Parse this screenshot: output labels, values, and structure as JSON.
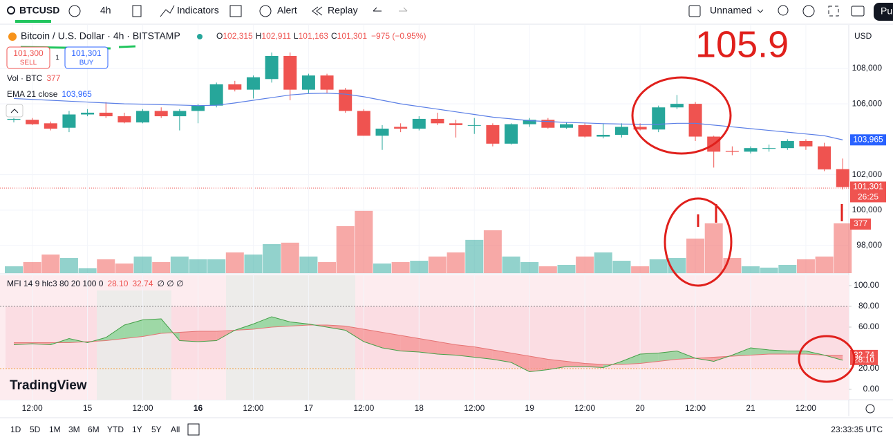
{
  "toolbar": {
    "symbol": "BTCUSD",
    "interval": "4h",
    "indicators": "Indicators",
    "alert": "Alert",
    "replay": "Replay",
    "layout": "Unnamed",
    "publish": "Pu"
  },
  "legend": {
    "title": "Bitcoin / U.S. Dollar · 4h · BITSTAMP",
    "o_key": "O",
    "o": "102,315",
    "h_key": "H",
    "h": "102,911",
    "l_key": "L",
    "l": "101,163",
    "c_key": "C",
    "c": "101,301",
    "change": "−975 (−0.95%)",
    "sell_price": "101,300",
    "sell": "SELL",
    "spread": "1",
    "buy_price": "101,301",
    "buy": "BUY",
    "vol": "Vol · BTC",
    "vol_value": "377",
    "ema": "EMA 21 close",
    "ema_value": "103,965",
    "mfi": "MFI 14 9 hlc3 80 20 100 0",
    "mfi_value": "28.10",
    "mfi_signal_value": "32.74",
    "mfi_extra": "∅ ∅ ∅"
  },
  "price_axis": {
    "currency": "USD",
    "ylim": [
      96440,
      110300
    ],
    "ticks": [
      {
        "value": 108000,
        "label": "108,000"
      },
      {
        "value": 106000,
        "label": "106,000"
      },
      {
        "value": 102000,
        "label": "102,000"
      },
      {
        "value": 100000,
        "label": "100,000"
      },
      {
        "value": 98000,
        "label": "98,000"
      }
    ],
    "ema_tag": {
      "value": 103965,
      "label": "103,965"
    },
    "last_tag": {
      "value": 101301,
      "label": "101,301"
    },
    "countdown": "26:25",
    "vol_tag": "377"
  },
  "candles": [
    {
      "o": 105100,
      "h": 105200,
      "l": 104950,
      "c": 105150
    },
    {
      "o": 105100,
      "h": 105200,
      "l": 104800,
      "c": 104850
    },
    {
      "o": 104900,
      "h": 105000,
      "l": 104500,
      "c": 104600
    },
    {
      "o": 104650,
      "h": 105600,
      "l": 104400,
      "c": 105400
    },
    {
      "o": 105400,
      "h": 105700,
      "l": 105300,
      "c": 105500
    },
    {
      "o": 105500,
      "h": 106100,
      "l": 105200,
      "c": 105300
    },
    {
      "o": 105300,
      "h": 105500,
      "l": 104900,
      "c": 104950
    },
    {
      "o": 104950,
      "h": 105700,
      "l": 104900,
      "c": 105600
    },
    {
      "o": 105600,
      "h": 105800,
      "l": 105200,
      "c": 105300
    },
    {
      "o": 105300,
      "h": 105700,
      "l": 104500,
      "c": 105600
    },
    {
      "o": 105600,
      "h": 106000,
      "l": 104900,
      "c": 105900
    },
    {
      "o": 105900,
      "h": 107200,
      "l": 105800,
      "c": 107100
    },
    {
      "o": 107100,
      "h": 107300,
      "l": 106700,
      "c": 106800
    },
    {
      "o": 106800,
      "h": 107600,
      "l": 106300,
      "c": 107500
    },
    {
      "o": 107400,
      "h": 108900,
      "l": 107200,
      "c": 108700
    },
    {
      "o": 108700,
      "h": 108900,
      "l": 106200,
      "c": 106800
    },
    {
      "o": 106800,
      "h": 107700,
      "l": 106600,
      "c": 107600
    },
    {
      "o": 107600,
      "h": 107700,
      "l": 106600,
      "c": 106800
    },
    {
      "o": 106800,
      "h": 106900,
      "l": 105500,
      "c": 105600
    },
    {
      "o": 105600,
      "h": 105700,
      "l": 104200,
      "c": 104200
    },
    {
      "o": 104200,
      "h": 104800,
      "l": 103400,
      "c": 104600
    },
    {
      "o": 104700,
      "h": 104900,
      "l": 104400,
      "c": 104600
    },
    {
      "o": 104600,
      "h": 105300,
      "l": 104500,
      "c": 105150
    },
    {
      "o": 105150,
      "h": 105500,
      "l": 104800,
      "c": 104900
    },
    {
      "o": 104900,
      "h": 105100,
      "l": 104100,
      "c": 104800
    },
    {
      "o": 104800,
      "h": 105200,
      "l": 104300,
      "c": 104800
    },
    {
      "o": 104800,
      "h": 104900,
      "l": 103600,
      "c": 103750
    },
    {
      "o": 103750,
      "h": 104900,
      "l": 103700,
      "c": 104850
    },
    {
      "o": 104850,
      "h": 105200,
      "l": 104700,
      "c": 105100
    },
    {
      "o": 105100,
      "h": 105200,
      "l": 104600,
      "c": 104650
    },
    {
      "o": 104650,
      "h": 104950,
      "l": 104600,
      "c": 104850
    },
    {
      "o": 104800,
      "h": 104900,
      "l": 104100,
      "c": 104150
    },
    {
      "o": 104150,
      "h": 104900,
      "l": 104050,
      "c": 104250
    },
    {
      "o": 104250,
      "h": 104900,
      "l": 104100,
      "c": 104700
    },
    {
      "o": 104700,
      "h": 104900,
      "l": 104500,
      "c": 104550
    },
    {
      "o": 104550,
      "h": 105900,
      "l": 104400,
      "c": 105800
    },
    {
      "o": 105800,
      "h": 106500,
      "l": 105700,
      "c": 106000
    },
    {
      "o": 106000,
      "h": 106100,
      "l": 103900,
      "c": 104150
    },
    {
      "o": 104150,
      "h": 104200,
      "l": 102400,
      "c": 103300
    },
    {
      "o": 103350,
      "h": 103600,
      "l": 103100,
      "c": 103300
    },
    {
      "o": 103300,
      "h": 103600,
      "l": 103200,
      "c": 103500
    },
    {
      "o": 103500,
      "h": 103700,
      "l": 103300,
      "c": 103500
    },
    {
      "o": 103500,
      "h": 104000,
      "l": 103400,
      "c": 103900
    },
    {
      "o": 103900,
      "h": 104000,
      "l": 103400,
      "c": 103600
    },
    {
      "o": 103600,
      "h": 103800,
      "l": 102200,
      "c": 102300
    },
    {
      "o": 102315,
      "h": 102911,
      "l": 101163,
      "c": 101301
    }
  ],
  "volumes": [
    52,
    84,
    141,
    115,
    37,
    105,
    73,
    126,
    84,
    126,
    105,
    105,
    157,
    141,
    220,
    231,
    126,
    84,
    356,
    472,
    73,
    84,
    94,
    126,
    157,
    252,
    325,
    126,
    84,
    52,
    63,
    126,
    157,
    94,
    52,
    105,
    115,
    262,
    377,
    115,
    52,
    42,
    63,
    105,
    126,
    377
  ],
  "ema": [
    106300,
    106250,
    106200,
    106150,
    106100,
    106050,
    106000,
    105980,
    105950,
    105930,
    105900,
    105920,
    106050,
    106200,
    106350,
    106500,
    106580,
    106600,
    106550,
    106400,
    106200,
    106000,
    105850,
    105700,
    105550,
    105400,
    105250,
    105150,
    105050,
    105000,
    104950,
    104920,
    104880,
    104860,
    104850,
    104850,
    104900,
    104900,
    104800,
    104700,
    104600,
    104500,
    104400,
    104300,
    104200,
    103965
  ],
  "mfi": [
    43,
    44,
    43,
    49,
    45,
    50,
    62,
    67,
    68,
    47,
    46,
    47,
    57,
    63,
    70,
    65,
    63,
    60,
    57,
    46,
    40,
    37,
    36,
    34,
    33,
    31,
    29,
    26,
    17,
    19,
    22,
    22,
    21,
    27,
    34,
    35,
    37,
    30,
    27,
    33,
    40,
    38,
    37,
    37,
    33,
    28.1
  ],
  "mfi_signal": [
    45,
    45,
    45,
    45,
    46,
    47,
    49,
    51,
    54,
    55,
    56,
    56,
    57,
    58,
    60,
    61,
    62,
    62,
    61,
    58,
    55,
    52,
    49,
    46,
    43,
    41,
    38,
    35,
    32,
    29,
    27,
    25,
    24,
    24,
    25,
    27,
    29,
    30,
    31,
    32,
    33,
    34,
    34,
    34,
    33,
    32.74
  ],
  "mfi_axis": {
    "ylim": [
      -10,
      110
    ],
    "ticks": [
      {
        "value": 100,
        "label": "100.00"
      },
      {
        "value": 80,
        "label": "80.00"
      },
      {
        "value": 60,
        "label": "60.00"
      },
      {
        "value": 20,
        "label": "20.00"
      },
      {
        "value": 0,
        "label": "0.00"
      }
    ]
  },
  "x_labels": [
    null,
    "12:00",
    null,
    null,
    "15",
    null,
    null,
    "12:00",
    null,
    null,
    "16",
    null,
    null,
    "12:00",
    null,
    null,
    "17",
    null,
    null,
    "12:00",
    null,
    null,
    "18",
    null,
    null,
    "12:00",
    null,
    null,
    "19",
    null,
    null,
    "12:00",
    null,
    null,
    "20",
    null,
    null,
    "12:00",
    null,
    null,
    "21",
    null,
    null,
    "12:00",
    null,
    null
  ],
  "ranges": [
    "1D",
    "5D",
    "1M",
    "3M",
    "6M",
    "YTD",
    "1Y",
    "5Y",
    "All"
  ],
  "clock": "23:33:35 UTC",
  "watermark": "TradingView",
  "annotation": "105.9"
}
